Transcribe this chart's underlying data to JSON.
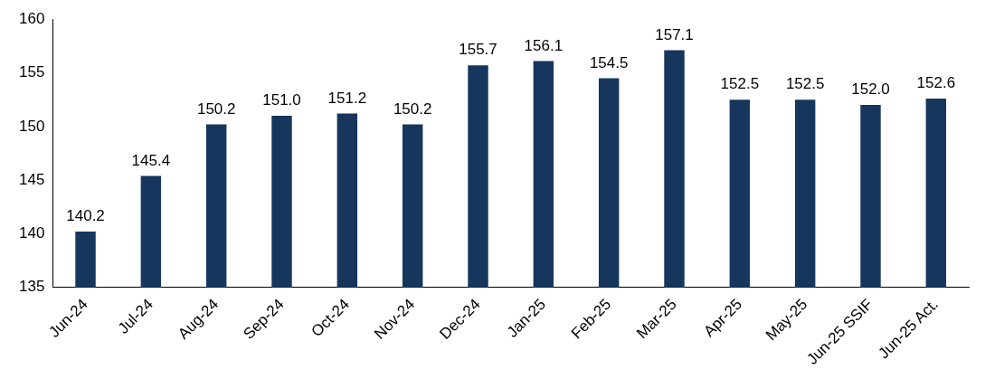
{
  "chart_data": {
    "type": "bar",
    "categories": [
      "Jun-24",
      "Jul-24",
      "Aug-24",
      "Sep-24",
      "Oct-24",
      "Nov-24",
      "Dec-24",
      "Jan-25",
      "Feb-25",
      "Mar-25",
      "Apr-25",
      "May-25",
      "Jun-25 SSIF",
      "Jun-25 Act."
    ],
    "values": [
      140.2,
      145.4,
      150.2,
      151.0,
      151.2,
      150.2,
      155.7,
      156.1,
      154.5,
      157.1,
      152.5,
      152.5,
      152.0,
      152.6
    ],
    "value_labels": [
      "140.2",
      "145.4",
      "150.2",
      "151.0",
      "151.2",
      "150.2",
      "155.7",
      "156.1",
      "154.5",
      "157.1",
      "152.5",
      "152.5",
      "152.0",
      "152.6"
    ],
    "color": "#17365d",
    "ylim": [
      135,
      160
    ],
    "yticks": [
      135,
      140,
      145,
      150,
      155,
      160
    ],
    "grid": false,
    "legend": false
  }
}
